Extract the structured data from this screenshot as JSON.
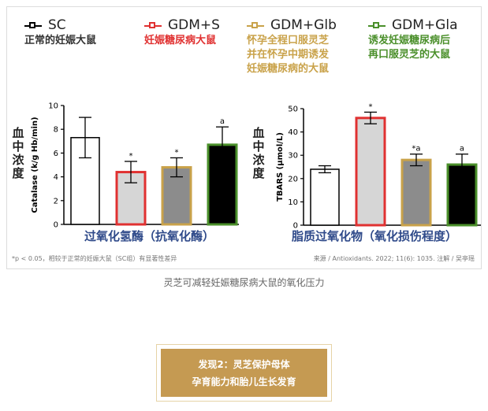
{
  "colors": {
    "sc": "#000000",
    "gdm_s": "#e03131",
    "gdm_glb": "#c9a24a",
    "gdm_gla": "#4a8f2a",
    "caption_blue": "#2f4a8a",
    "banner": "#c59a52"
  },
  "legend": [
    {
      "name": "SC",
      "desc": "正常的妊娠大鼠",
      "color": "#000000",
      "desc_color": "#333333"
    },
    {
      "name": "GDM+S",
      "desc": "妊娠糖尿病大鼠",
      "color": "#e03131",
      "desc_color": "#e03131"
    },
    {
      "name": "GDM+Glb",
      "desc": "怀孕全程口服灵芝\n并在怀孕中期诱发\n妊娠糖尿病的大鼠",
      "color": "#c9a24a",
      "desc_color": "#c9a24a"
    },
    {
      "name": "GDM+Gla",
      "desc": "诱发妊娠糖尿病后\n再口服灵芝的大鼠",
      "color": "#4a8f2a",
      "desc_color": "#4a8f2a"
    }
  ],
  "vertical_label": "血中浓度",
  "chart_data": [
    {
      "type": "bar",
      "categories": [
        "SC",
        "GDM+S",
        "GDM+Glb",
        "GDM+Gla"
      ],
      "values": [
        7.3,
        4.4,
        4.8,
        6.7
      ],
      "errors": [
        1.7,
        0.9,
        0.8,
        1.5
      ],
      "annotations": [
        "",
        "*",
        "*",
        "a"
      ],
      "ylabel": "Catalase (k/g Hb/min)",
      "ylim": [
        0,
        10
      ],
      "yticks": [
        "0",
        "2",
        "4",
        "6",
        "8",
        "10"
      ],
      "caption": "过氧化氢酶（抗氧化酶）"
    },
    {
      "type": "bar",
      "categories": [
        "SC",
        "GDM+S",
        "GDM+Glb",
        "GDM+Gla"
      ],
      "values": [
        24,
        46,
        28,
        26
      ],
      "errors": [
        1.5,
        2.5,
        2.5,
        4.5
      ],
      "annotations": [
        "",
        "*",
        "*a",
        "a"
      ],
      "ylabel": "TBARS (μmol/L)",
      "ylim": [
        0,
        50
      ],
      "yticks": [
        "0",
        "10",
        "20",
        "30",
        "40",
        "50"
      ],
      "caption": "脂质过氧化物（氧化损伤程度）"
    }
  ],
  "footnote_left": "*p < 0.05，相较于正常的妊娠大鼠（SC组）有显著性差异",
  "footnote_right": "来源 / Antioxidants. 2022; 11(6): 1035.  注解 / 吴亭瑶",
  "image_caption": "灵芝可减轻妊娠糖尿病大鼠的氧化压力",
  "banner": {
    "line1": "发现2：灵芝保护母体",
    "line2": "孕育能力和胎儿生长发育"
  }
}
